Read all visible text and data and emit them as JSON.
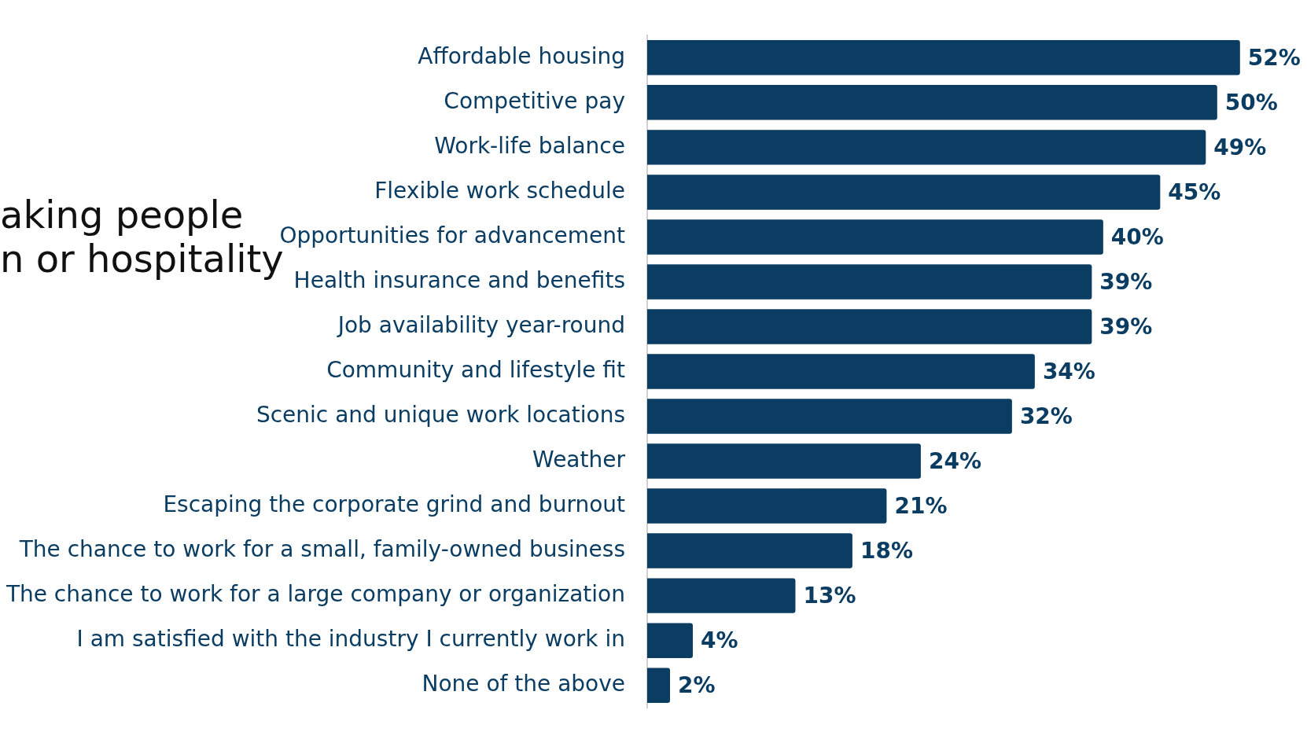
{
  "chart_data": {
    "type": "bar",
    "orientation": "horizontal",
    "title": "aking people\nn or hospitality",
    "categories": [
      "Affordable housing",
      "Competitive pay",
      "Work-life balance",
      "Flexible work schedule",
      "Opportunities for advancement",
      "Health insurance and benefits",
      "Job availability year-round",
      "Community and lifestyle fit",
      "Scenic and unique work locations",
      "Weather",
      "Escaping the corporate grind and burnout",
      "The chance to work for a small, family-owned business",
      "The chance to work for a large company or organization",
      "I am satisfied with the industry I currently work in",
      "None of the above"
    ],
    "values": [
      52,
      50,
      49,
      45,
      40,
      39,
      39,
      34,
      32,
      24,
      21,
      18,
      13,
      4,
      2
    ],
    "value_labels": [
      "52%",
      "50%",
      "49%",
      "45%",
      "40%",
      "39%",
      "39%",
      "34%",
      "32%",
      "24%",
      "21%",
      "18%",
      "13%",
      "4%",
      "2%"
    ],
    "color": "#0b3d63"
  }
}
